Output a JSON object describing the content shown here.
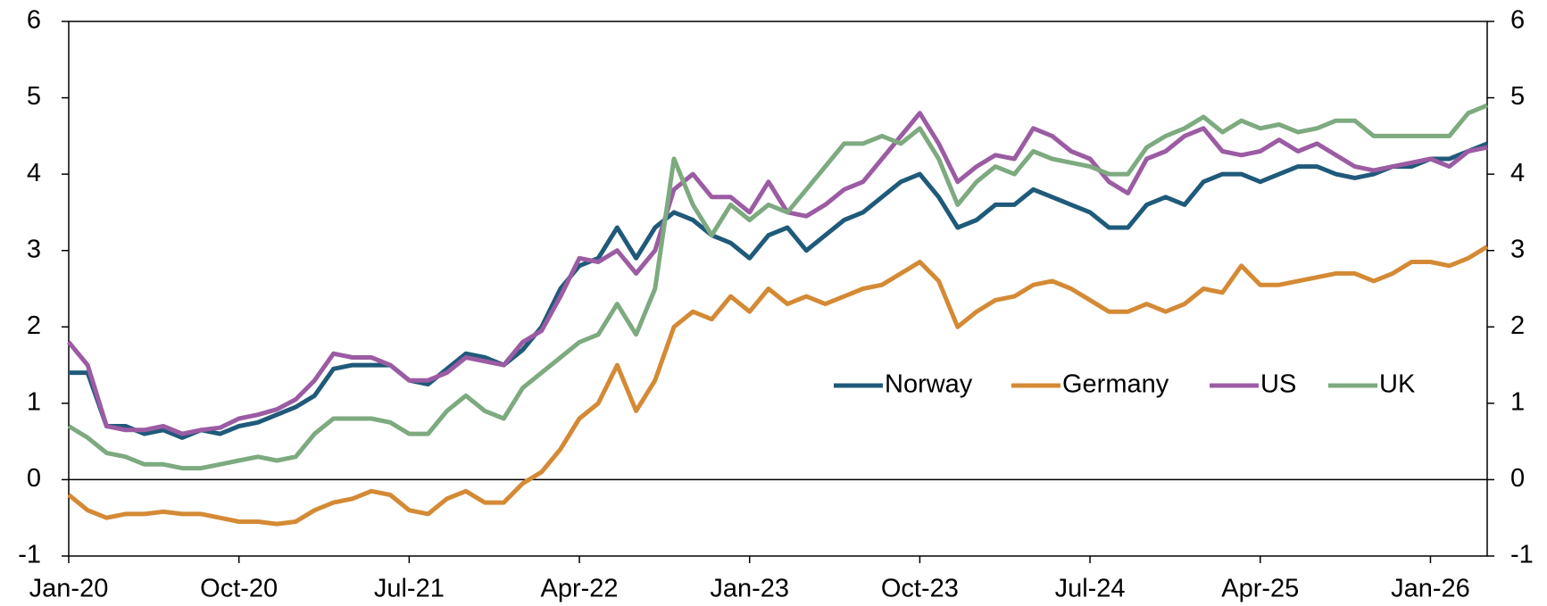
{
  "chart_data": {
    "type": "line",
    "categories": [
      "Jan-20",
      null,
      null,
      null,
      null,
      null,
      null,
      null,
      null,
      "Oct-20",
      null,
      null,
      null,
      null,
      null,
      null,
      null,
      null,
      "Jul-21",
      null,
      null,
      null,
      null,
      null,
      null,
      null,
      null,
      "Apr-22",
      null,
      null,
      null,
      null,
      null,
      null,
      null,
      null,
      "Jan-23",
      null,
      null,
      null,
      null,
      null,
      null,
      null,
      null,
      "Oct-23",
      null,
      null,
      null,
      null,
      null,
      null,
      null,
      null,
      "Jul-24",
      null,
      null,
      null,
      null,
      null,
      null,
      null,
      null,
      "Apr-25",
      null,
      null,
      null,
      null,
      null,
      null,
      null,
      null,
      "Jan-26",
      null,
      null,
      null
    ],
    "series": [
      {
        "name": "Norway",
        "color": "#1f5a7a",
        "values": [
          1.4,
          1.4,
          0.7,
          0.7,
          0.6,
          0.65,
          0.55,
          0.65,
          0.6,
          0.7,
          0.75,
          0.85,
          0.95,
          1.1,
          1.45,
          1.5,
          1.5,
          1.5,
          1.3,
          1.25,
          1.45,
          1.65,
          1.6,
          1.5,
          1.7,
          2.0,
          2.5,
          2.8,
          2.9,
          3.3,
          2.9,
          3.3,
          3.5,
          3.4,
          3.2,
          3.1,
          2.9,
          3.2,
          3.3,
          3.0,
          3.2,
          3.4,
          3.5,
          3.7,
          3.9,
          4.0,
          3.7,
          3.3,
          3.4,
          3.6,
          3.6,
          3.8,
          3.7,
          3.6,
          3.5,
          3.3,
          3.3,
          3.6,
          3.7,
          3.6,
          3.9,
          4.0,
          4.0,
          3.9,
          4.0,
          4.1,
          4.1,
          4.0,
          3.95,
          4.0,
          4.1,
          4.1,
          4.2,
          4.2,
          4.3,
          4.4
        ]
      },
      {
        "name": "Germany",
        "color": "#d48a35",
        "values": [
          -0.2,
          -0.4,
          -0.5,
          -0.45,
          -0.45,
          -0.42,
          -0.45,
          -0.45,
          -0.5,
          -0.55,
          -0.55,
          -0.58,
          -0.55,
          -0.4,
          -0.3,
          -0.25,
          -0.15,
          -0.2,
          -0.4,
          -0.45,
          -0.25,
          -0.15,
          -0.3,
          -0.3,
          -0.05,
          0.1,
          0.4,
          0.8,
          1.0,
          1.5,
          0.9,
          1.3,
          2.0,
          2.2,
          2.1,
          2.4,
          2.2,
          2.5,
          2.3,
          2.4,
          2.3,
          2.4,
          2.5,
          2.55,
          2.7,
          2.85,
          2.6,
          2.0,
          2.2,
          2.35,
          2.4,
          2.55,
          2.6,
          2.5,
          2.35,
          2.2,
          2.2,
          2.3,
          2.2,
          2.3,
          2.5,
          2.45,
          2.8,
          2.55,
          2.55,
          2.6,
          2.65,
          2.7,
          2.7,
          2.6,
          2.7,
          2.85,
          2.85,
          2.8,
          2.9,
          3.05
        ]
      },
      {
        "name": "US",
        "color": "#9b5ca3",
        "values": [
          1.8,
          1.5,
          0.7,
          0.65,
          0.65,
          0.7,
          0.6,
          0.65,
          0.68,
          0.8,
          0.85,
          0.92,
          1.05,
          1.3,
          1.65,
          1.6,
          1.6,
          1.5,
          1.3,
          1.3,
          1.4,
          1.6,
          1.55,
          1.5,
          1.8,
          1.95,
          2.4,
          2.9,
          2.85,
          3.0,
          2.7,
          3.0,
          3.8,
          4.0,
          3.7,
          3.7,
          3.5,
          3.9,
          3.5,
          3.45,
          3.6,
          3.8,
          3.9,
          4.2,
          4.5,
          4.8,
          4.4,
          3.9,
          4.1,
          4.25,
          4.2,
          4.6,
          4.5,
          4.3,
          4.2,
          3.9,
          3.75,
          4.2,
          4.3,
          4.5,
          4.6,
          4.3,
          4.25,
          4.3,
          4.45,
          4.3,
          4.4,
          4.25,
          4.1,
          4.05,
          4.1,
          4.15,
          4.2,
          4.1,
          4.3,
          4.35
        ]
      },
      {
        "name": "UK",
        "color": "#7daa7f",
        "values": [
          0.7,
          0.55,
          0.35,
          0.3,
          0.2,
          0.2,
          0.15,
          0.15,
          0.2,
          0.25,
          0.3,
          0.25,
          0.3,
          0.6,
          0.8,
          0.8,
          0.8,
          0.75,
          0.6,
          0.6,
          0.9,
          1.1,
          0.9,
          0.8,
          1.2,
          1.4,
          1.6,
          1.8,
          1.9,
          2.3,
          1.9,
          2.5,
          4.2,
          3.6,
          3.2,
          3.6,
          3.4,
          3.6,
          3.5,
          3.8,
          4.1,
          4.4,
          4.4,
          4.5,
          4.4,
          4.6,
          4.2,
          3.6,
          3.9,
          4.1,
          4.0,
          4.3,
          4.2,
          4.15,
          4.1,
          4.0,
          4.0,
          4.35,
          4.5,
          4.6,
          4.75,
          4.55,
          4.7,
          4.6,
          4.65,
          4.55,
          4.6,
          4.7,
          4.7,
          4.5,
          4.5,
          4.5,
          4.5,
          4.5,
          4.8,
          4.9
        ]
      }
    ],
    "ylim": [
      -1,
      6
    ],
    "yticks": [
      -1,
      0,
      1,
      2,
      3,
      4,
      5,
      6
    ],
    "y2lim": [
      -1,
      6
    ],
    "y2ticks": [
      -1,
      0,
      1,
      2,
      3,
      4,
      5,
      6
    ],
    "grid": false,
    "legend": "right"
  }
}
